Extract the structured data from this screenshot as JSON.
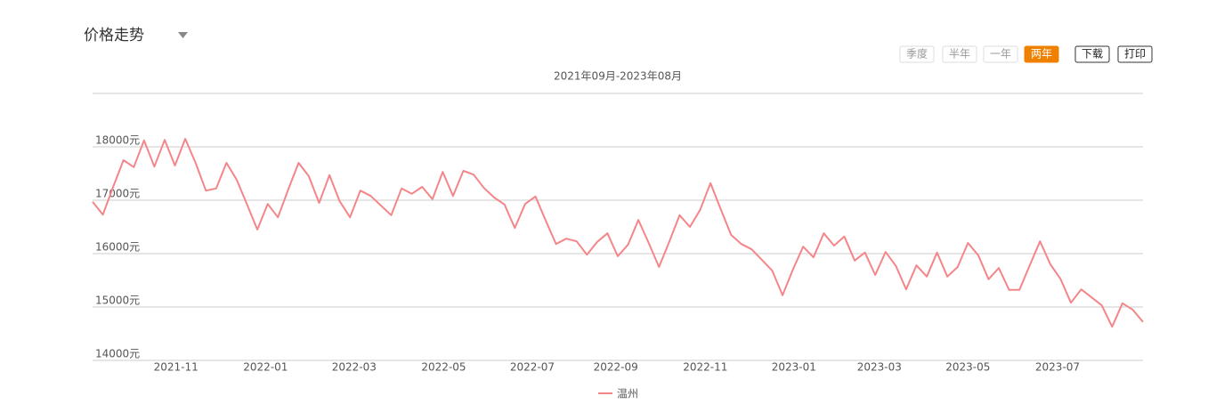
{
  "header": {
    "title": "价格走势"
  },
  "controls": {
    "ranges": [
      "季度",
      "半年",
      "一年",
      "两年"
    ],
    "active_range": 3,
    "actions": [
      "下载",
      "打印"
    ]
  },
  "chart_data": {
    "type": "line",
    "title": "2021年09月-2023年08月",
    "series": [
      {
        "name": "温州",
        "color": "#f4868a",
        "values": [
          16970,
          16730,
          17250,
          17750,
          17620,
          18120,
          17630,
          18130,
          17650,
          18150,
          17700,
          17180,
          17220,
          17700,
          17380,
          16920,
          16450,
          16930,
          16680,
          17200,
          17700,
          17450,
          16950,
          17470,
          16980,
          16680,
          17180,
          17080,
          16900,
          16720,
          17220,
          17120,
          17250,
          17020,
          17530,
          17080,
          17550,
          17480,
          17230,
          17050,
          16920,
          16480,
          16930,
          17070,
          16620,
          16180,
          16280,
          16230,
          15980,
          16220,
          16380,
          15950,
          16170,
          16630,
          16200,
          15750,
          16220,
          16720,
          16500,
          16820,
          17320,
          16830,
          16350,
          16180,
          16080,
          15880,
          15680,
          15220,
          15700,
          16130,
          15930,
          16380,
          16150,
          16320,
          15870,
          16020,
          15600,
          16030,
          15770,
          15330,
          15780,
          15570,
          16020,
          15570,
          15750,
          16200,
          15970,
          15520,
          15730,
          15320,
          15320,
          15780,
          16230,
          15800,
          15520,
          15080,
          15330,
          15180,
          15030,
          14630,
          15070,
          14950,
          14720
        ]
      }
    ],
    "xlim": [
      0,
      102
    ],
    "xticks": [
      {
        "value": 8.1,
        "label": "2021-11"
      },
      {
        "value": 16.8,
        "label": "2022-01"
      },
      {
        "value": 25.4,
        "label": "2022-03"
      },
      {
        "value": 34.1,
        "label": "2022-05"
      },
      {
        "value": 42.7,
        "label": "2022-07"
      },
      {
        "value": 50.8,
        "label": "2022-09"
      },
      {
        "value": 59.5,
        "label": "2022-11"
      },
      {
        "value": 68.1,
        "label": "2023-01"
      },
      {
        "value": 76.4,
        "label": "2023-03"
      },
      {
        "value": 85.0,
        "label": "2023-05"
      },
      {
        "value": 93.7,
        "label": "2023-07"
      }
    ],
    "ylim": [
      14000,
      19000
    ],
    "yticks": [
      {
        "value": 14000,
        "label": "14000元"
      },
      {
        "value": 15000,
        "label": "15000元"
      },
      {
        "value": 16000,
        "label": "16000元"
      },
      {
        "value": 17000,
        "label": "17000元"
      },
      {
        "value": 18000,
        "label": "18000元"
      }
    ],
    "grid": true
  }
}
